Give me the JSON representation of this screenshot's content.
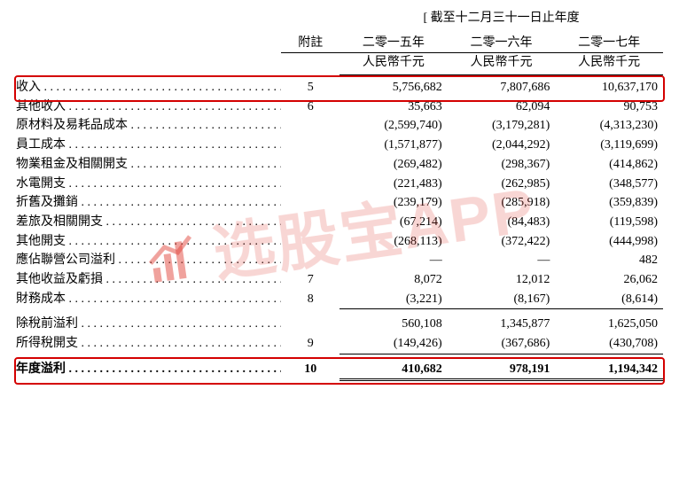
{
  "header": {
    "periodTitle": "[ 截至十二月三十一日止年度",
    "noteHeader": "附註",
    "years": [
      "二零一五年",
      "二零一六年",
      "二零一七年"
    ],
    "unit": "人民幣千元"
  },
  "rows": [
    {
      "label": "收入",
      "note": "5",
      "y1": "5,756,682",
      "y2": "7,807,686",
      "y3": "10,637,170",
      "highlight": true
    },
    {
      "label": "其他收入",
      "note": "6",
      "y1": "35,663",
      "y2": "62,094",
      "y3": "90,753"
    },
    {
      "label": "原材料及易耗品成本",
      "note": "",
      "y1": "(2,599,740)",
      "y2": "(3,179,281)",
      "y3": "(4,313,230)"
    },
    {
      "label": "員工成本",
      "note": "",
      "y1": "(1,571,877)",
      "y2": "(2,044,292)",
      "y3": "(3,119,699)"
    },
    {
      "label": "物業租金及相關開支",
      "note": "",
      "y1": "(269,482)",
      "y2": "(298,367)",
      "y3": "(414,862)"
    },
    {
      "label": "水電開支",
      "note": "",
      "y1": "(221,483)",
      "y2": "(262,985)",
      "y3": "(348,577)"
    },
    {
      "label": "折舊及攤銷",
      "note": "",
      "y1": "(239,179)",
      "y2": "(285,918)",
      "y3": "(359,839)"
    },
    {
      "label": "差旅及相關開支",
      "note": "",
      "y1": "(67,214)",
      "y2": "(84,483)",
      "y3": "(119,598)"
    },
    {
      "label": "其他開支",
      "note": "",
      "y1": "(268,113)",
      "y2": "(372,422)",
      "y3": "(444,998)"
    },
    {
      "label": "應佔聯營公司溢利",
      "note": "",
      "y1": "—",
      "y2": "—",
      "y3": "482"
    },
    {
      "label": "其他收益及虧損",
      "note": "7",
      "y1": "8,072",
      "y2": "12,012",
      "y3": "26,062"
    },
    {
      "label": "財務成本",
      "note": "8",
      "y1": "(3,221)",
      "y2": "(8,167)",
      "y3": "(8,614)",
      "underlineAfter": true
    }
  ],
  "subtotal": [
    {
      "label": "除稅前溢利",
      "note": "",
      "y1": "560,108",
      "y2": "1,345,877",
      "y3": "1,625,050"
    },
    {
      "label": "所得稅開支",
      "note": "9",
      "y1": "(149,426)",
      "y2": "(367,686)",
      "y3": "(430,708)",
      "underlineAfter": true
    }
  ],
  "total": {
    "label": "年度溢利",
    "note": "10",
    "y1": "410,682",
    "y2": "978,191",
    "y3": "1,194,342",
    "highlight": true
  },
  "watermark": {
    "text": "选股宝APP"
  },
  "style": {
    "highlightColor": "#d40000",
    "textColor": "#000000",
    "fontSizePt": 14,
    "watermarkColor": "rgba(225,70,60,0.22)"
  }
}
